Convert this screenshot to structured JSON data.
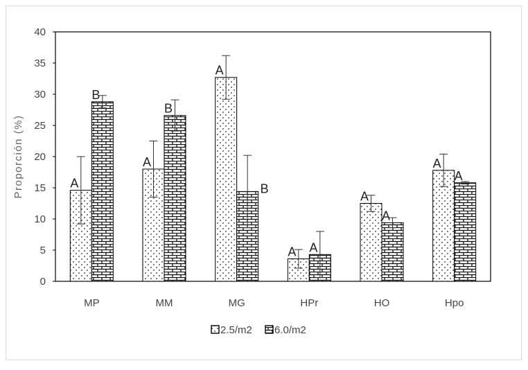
{
  "chart_data": {
    "type": "bar",
    "title": "",
    "xlabel": "",
    "ylabel": "Proporción (%)",
    "ylim": [
      0,
      40
    ],
    "yticks": [
      0,
      5,
      10,
      15,
      20,
      25,
      30,
      35,
      40
    ],
    "grid": false,
    "legend_position": "bottom",
    "categories": [
      "MP",
      "MM",
      "MG",
      "HPr",
      "HO",
      "Hpo"
    ],
    "series": [
      {
        "name": "2.5/m2",
        "pattern": "dots",
        "values": [
          14.6,
          18.0,
          32.7,
          3.6,
          12.5,
          17.8
        ],
        "errors": [
          5.4,
          4.5,
          3.5,
          1.5,
          1.3,
          2.6
        ],
        "labels": [
          "A",
          "A",
          "A",
          "A",
          "A",
          "A"
        ]
      },
      {
        "name": "6.0/m2",
        "pattern": "bricks",
        "values": [
          28.8,
          26.6,
          14.4,
          4.3,
          9.4,
          15.8
        ],
        "errors": [
          1.0,
          2.5,
          5.8,
          3.7,
          0.8,
          0.2
        ],
        "labels": [
          "B",
          "B",
          "B",
          "A",
          "A",
          "A"
        ]
      }
    ]
  }
}
